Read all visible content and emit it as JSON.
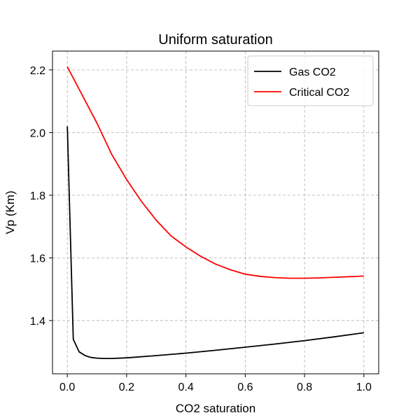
{
  "chart_data": {
    "type": "line",
    "title": "Uniform saturation",
    "xlabel": "CO2 saturation",
    "ylabel": "Vp (Km)",
    "xlim": [
      -0.05,
      1.05
    ],
    "ylim": [
      1.23,
      2.26
    ],
    "xticks": [
      0.0,
      0.2,
      0.4,
      0.6,
      0.8,
      1.0
    ],
    "xtick_labels": [
      "0.0",
      "0.2",
      "0.4",
      "0.6",
      "0.8",
      "1.0"
    ],
    "yticks": [
      1.4,
      1.6,
      1.8,
      2.0,
      2.2
    ],
    "ytick_labels": [
      "1.4",
      "1.6",
      "1.8",
      "2.0",
      "2.2"
    ],
    "grid": true,
    "legend_position": "top-right",
    "series": [
      {
        "name": "Gas CO2",
        "color": "#000000",
        "x": [
          0.0,
          0.02,
          0.04,
          0.06,
          0.08,
          0.1,
          0.12,
          0.15,
          0.2,
          0.3,
          0.4,
          0.5,
          0.6,
          0.7,
          0.8,
          0.9,
          1.0
        ],
        "y": [
          2.02,
          1.34,
          1.3,
          1.288,
          1.282,
          1.28,
          1.279,
          1.279,
          1.281,
          1.288,
          1.296,
          1.305,
          1.315,
          1.325,
          1.336,
          1.348,
          1.361
        ]
      },
      {
        "name": "Critical CO2",
        "color": "#ff0000",
        "x": [
          0.0,
          0.05,
          0.1,
          0.15,
          0.2,
          0.25,
          0.3,
          0.35,
          0.4,
          0.45,
          0.5,
          0.55,
          0.6,
          0.65,
          0.7,
          0.75,
          0.8,
          0.85,
          0.9,
          0.95,
          1.0
        ],
        "y": [
          2.21,
          2.12,
          2.03,
          1.93,
          1.85,
          1.78,
          1.72,
          1.67,
          1.635,
          1.605,
          1.58,
          1.562,
          1.548,
          1.541,
          1.537,
          1.535,
          1.535,
          1.536,
          1.538,
          1.54,
          1.542
        ]
      }
    ]
  }
}
